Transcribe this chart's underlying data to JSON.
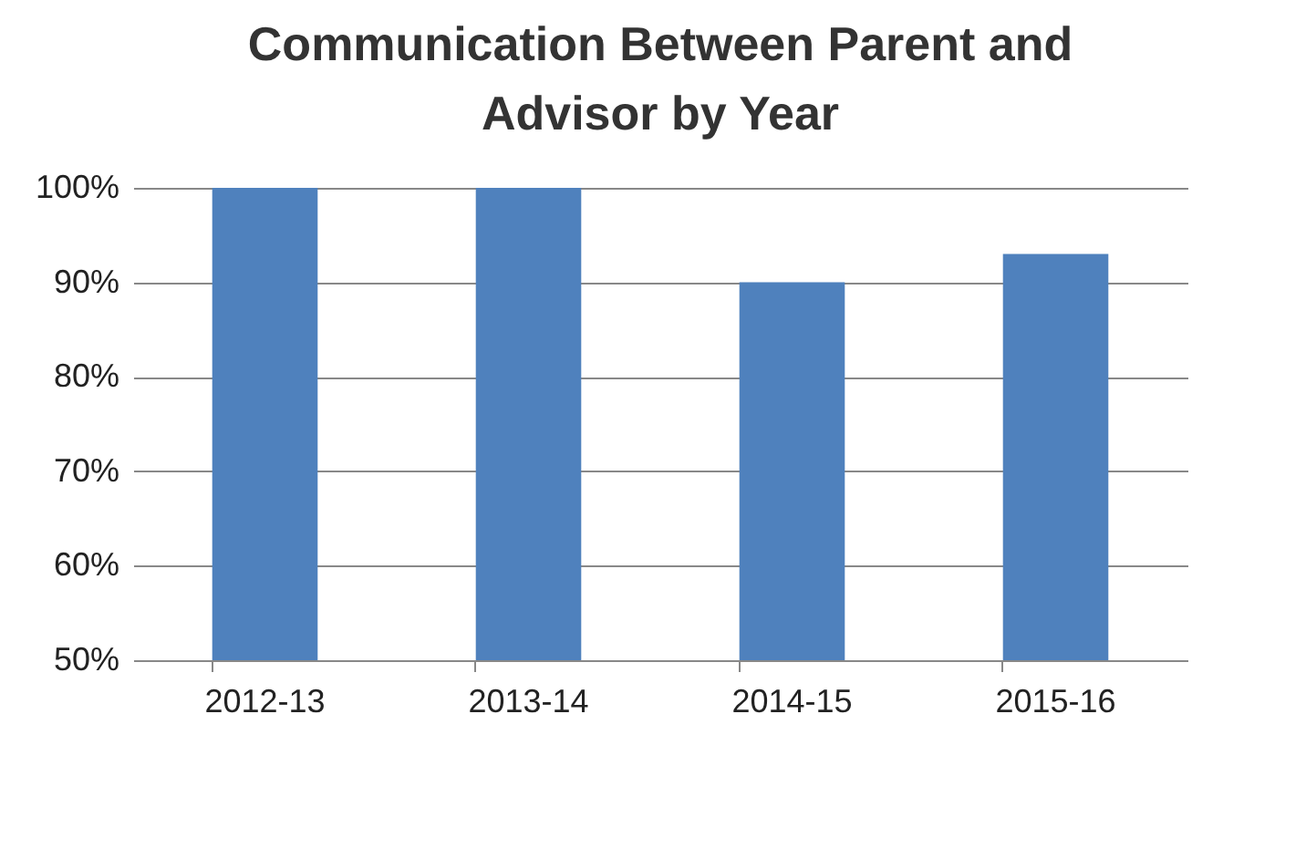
{
  "chart_data": {
    "type": "bar",
    "title": "Communication Between Parent and Advisor by Year",
    "categories": [
      "2012-13",
      "2013-14",
      "2014-15",
      "2015-16"
    ],
    "values": [
      100,
      100,
      90,
      93
    ],
    "color": "#4f81bd",
    "ylim": [
      50,
      100
    ],
    "yticks": [
      {
        "value": 50,
        "label": "50%"
      },
      {
        "value": 60,
        "label": "60%"
      },
      {
        "value": 70,
        "label": "70%"
      },
      {
        "value": 80,
        "label": "80%"
      },
      {
        "value": 90,
        "label": "90%"
      },
      {
        "value": 100,
        "label": "100%"
      }
    ],
    "grid": "y"
  }
}
